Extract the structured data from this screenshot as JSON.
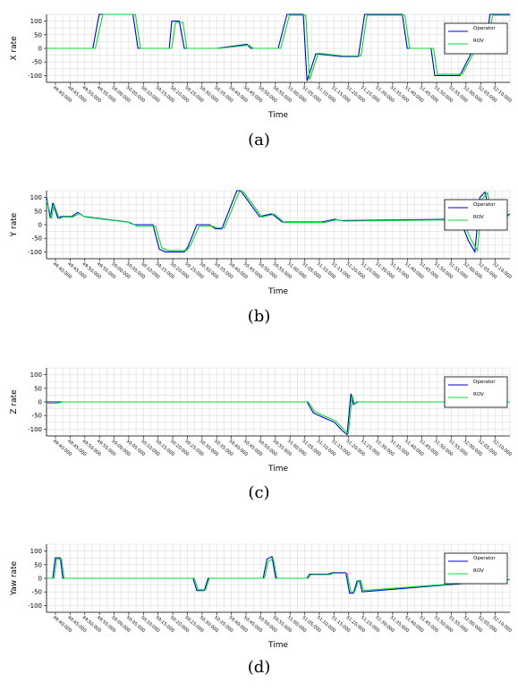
{
  "figure": {
    "captions": [
      "(a)",
      "(b)",
      "(c)",
      "(d)"
    ]
  },
  "colors": {
    "operator": "#0000cc",
    "rov": "#00dd33",
    "grid": "#d6d6d6"
  },
  "chart_data": [
    {
      "type": "line",
      "title": "",
      "xlabel": "Time",
      "ylabel": "X rate",
      "ylim": [
        -125,
        125
      ],
      "yticks": [
        100,
        50,
        0,
        -50,
        -100
      ],
      "xlim": [
        0,
        37
      ],
      "xtick_labels": [
        "49:40:000",
        "49:45:000",
        "49:50:000",
        "49:55:000",
        "50:00:000",
        "50:05:000",
        "50:10:000",
        "50:15:000",
        "50:20:000",
        "50:25:000",
        "50:30:000",
        "50:35:000",
        "50:40:000",
        "50:45:000",
        "50:50:000",
        "50:55:000",
        "51:00:000",
        "51:05:000",
        "51:10:000",
        "51:15:000",
        "51:20:000",
        "51:25:000",
        "51:30:000",
        "51:35:000",
        "51:40:000",
        "51:45:000",
        "51:50:000",
        "51:55:000",
        "52:00:000",
        "52:05:000",
        "52:10:000"
      ],
      "grid": true,
      "legend_position": "top-right",
      "series": [
        {
          "name": "Operator",
          "x": [
            0,
            3.7,
            4.2,
            6.9,
            7.3,
            9.8,
            10,
            10.6,
            11,
            13.6,
            16,
            16.3,
            18.5,
            19.2,
            20.5,
            20.8,
            21.5,
            23.5,
            24.9,
            25.4,
            28.4,
            28.8,
            30.7,
            31,
            33,
            34,
            34.2,
            35.1,
            35.4,
            37
          ],
          "y": [
            0,
            0,
            125,
            125,
            0,
            0,
            100,
            100,
            0,
            0,
            15,
            0,
            0,
            125,
            125,
            -120,
            -20,
            -30,
            -30,
            125,
            125,
            0,
            0,
            -100,
            -100,
            -10,
            -10,
            0,
            125,
            125
          ]
        },
        {
          "name": "ROV",
          "x": [
            0,
            3.9,
            4.5,
            7.1,
            7.5,
            10,
            10.3,
            10.9,
            11.2,
            13.8,
            16.2,
            16.5,
            18.7,
            19.4,
            20.7,
            21,
            21.7,
            23.7,
            25.1,
            25.6,
            28.6,
            29,
            30.9,
            31.2,
            33.2,
            34.2,
            34.4,
            35.3,
            35.6,
            37
          ],
          "y": [
            0,
            0,
            125,
            125,
            0,
            0,
            95,
            95,
            0,
            0,
            12,
            0,
            0,
            122,
            122,
            -115,
            -18,
            -28,
            -28,
            122,
            122,
            0,
            0,
            -95,
            -95,
            -8,
            -8,
            0,
            122,
            122
          ]
        }
      ]
    },
    {
      "type": "line",
      "title": "",
      "xlabel": "Time",
      "ylabel": "Y rate",
      "ylim": [
        -125,
        125
      ],
      "yticks": [
        100,
        50,
        0,
        -50,
        -100
      ],
      "xlim": [
        0,
        37
      ],
      "xtick_labels": [
        "49:40:000",
        "49:45:000",
        "49:50:000",
        "49:55:000",
        "50:00:000",
        "50:05:000",
        "50:10:000",
        "50:15:000",
        "50:20:000",
        "50:25:000",
        "50:30:000",
        "50:35:000",
        "50:40:000",
        "50:45:000",
        "50:50:000",
        "50:55:000",
        "51:00:000",
        "51:05:000",
        "51:10:000",
        "51:15:000",
        "51:20:000",
        "51:25:000",
        "51:30:000",
        "51:35:000",
        "51:40:000",
        "51:45:000",
        "51:50:000",
        "51:55:000",
        "52:00:000",
        "52:05:000",
        "52:10:000"
      ],
      "grid": true,
      "legend_position": "top-right",
      "series": [
        {
          "name": "Operator",
          "x": [
            0,
            0.3,
            0.5,
            0.9,
            1.2,
            2,
            2.5,
            3,
            6.5,
            7,
            8.5,
            9,
            9.5,
            11,
            11.3,
            12,
            13,
            13.5,
            14,
            15.2,
            15.5,
            17,
            18,
            18.8,
            20.5,
            21.5,
            22,
            23,
            23.5,
            33,
            33.7,
            34.2,
            34.6,
            35,
            35.6,
            37
          ],
          "y": [
            100,
            25,
            80,
            25,
            30,
            30,
            45,
            30,
            10,
            0,
            0,
            -90,
            -100,
            -100,
            -80,
            0,
            0,
            -15,
            -15,
            125,
            125,
            30,
            40,
            10,
            10,
            10,
            10,
            20,
            15,
            20,
            -60,
            -100,
            100,
            120,
            0,
            40
          ]
        },
        {
          "name": "ROV",
          "x": [
            0,
            0.4,
            0.6,
            1,
            1.3,
            2.1,
            2.6,
            3.1,
            6.7,
            7.2,
            8.7,
            9.2,
            9.7,
            11.2,
            11.5,
            12.2,
            13.2,
            13.7,
            14.2,
            15.4,
            15.7,
            17.2,
            18.2,
            19,
            20.7,
            21.7,
            22.2,
            23.2,
            23.7,
            33.2,
            33.9,
            34.4,
            34.8,
            35.2,
            35.8,
            37
          ],
          "y": [
            90,
            22,
            75,
            22,
            28,
            28,
            40,
            28,
            8,
            -5,
            -5,
            -85,
            -95,
            -95,
            -75,
            -5,
            -5,
            -12,
            -12,
            122,
            122,
            28,
            38,
            8,
            8,
            8,
            8,
            18,
            13,
            18,
            -55,
            -95,
            95,
            118,
            -5,
            38
          ]
        }
      ]
    },
    {
      "type": "line",
      "title": "",
      "xlabel": "Time",
      "ylabel": "Z rate",
      "ylim": [
        -125,
        125
      ],
      "yticks": [
        100,
        50,
        0,
        -50,
        -100
      ],
      "xlim": [
        0,
        37
      ],
      "xtick_labels": [
        "49:40:000",
        "49:45:000",
        "49:50:000",
        "49:55:000",
        "50:00:000",
        "50:05:000",
        "50:10:000",
        "50:15:000",
        "50:20:000",
        "50:25:000",
        "50:30:000",
        "50:35:000",
        "50:40:000",
        "50:45:000",
        "50:50:000",
        "50:55:000",
        "51:00:000",
        "51:05:000",
        "51:10:000",
        "51:15:000",
        "51:20:000",
        "51:25:000",
        "51:30:000",
        "51:35:000",
        "51:40:000",
        "51:45:000",
        "51:50:000",
        "51:55:000",
        "52:00:000",
        "52:05:000",
        "52:10:000"
      ],
      "grid": true,
      "legend_position": "top-right",
      "series": [
        {
          "name": "Operator",
          "x": [
            0,
            0.8,
            1.3,
            20.8,
            21.3,
            22,
            23,
            23.6,
            24,
            24.3,
            24.5,
            24.8,
            37
          ],
          "y": [
            0,
            0,
            0,
            0,
            -40,
            -55,
            -75,
            -105,
            -120,
            30,
            -10,
            0,
            0
          ]
        },
        {
          "name": "ROV",
          "x": [
            0,
            0.8,
            1.3,
            20.9,
            21.4,
            22.1,
            23.1,
            23.7,
            24.1,
            24.4,
            24.6,
            24.9,
            37
          ],
          "y": [
            -5,
            -5,
            0,
            0,
            -35,
            -50,
            -70,
            -100,
            -115,
            25,
            -8,
            0,
            0
          ]
        }
      ]
    },
    {
      "type": "line",
      "title": "",
      "xlabel": "Time",
      "ylabel": "Yaw rate",
      "ylim": [
        -125,
        125
      ],
      "yticks": [
        100,
        50,
        0,
        -50,
        -100
      ],
      "xlim": [
        0,
        37
      ],
      "xtick_labels": [
        "49:40:000",
        "49:45:000",
        "49:50:000",
        "49:55:000",
        "50:00:000",
        "50:05:000",
        "50:10:000",
        "50:15:000",
        "50:20:000",
        "50:25:000",
        "50:30:000",
        "50:35:000",
        "50:40:000",
        "50:45:000",
        "50:50:000",
        "50:55:000",
        "51:00:000",
        "51:05:000",
        "51:10:000",
        "51:15:000",
        "51:20:000",
        "51:25:000",
        "51:30:000",
        "51:35:000",
        "51:40:000",
        "51:45:000",
        "51:50:000",
        "51:55:000",
        "52:00:000",
        "52:05:000",
        "52:10:000"
      ],
      "grid": true,
      "legend_position": "top-right",
      "series": [
        {
          "name": "Operator",
          "x": [
            0,
            0.5,
            0.7,
            1.1,
            1.3,
            11.7,
            12,
            12.6,
            12.9,
            17.3,
            17.6,
            18,
            18.3,
            20.8,
            21,
            22.5,
            22.8,
            23.9,
            24.2,
            24.5,
            24.8,
            25,
            25.2,
            37
          ],
          "y": [
            0,
            0,
            75,
            75,
            0,
            0,
            -45,
            -45,
            0,
            0,
            70,
            80,
            0,
            0,
            15,
            15,
            20,
            20,
            -55,
            -55,
            -10,
            -10,
            -50,
            -5
          ]
        },
        {
          "name": "ROV",
          "x": [
            0,
            0.6,
            0.8,
            1.2,
            1.4,
            11.8,
            12.1,
            12.7,
            13,
            17.4,
            17.7,
            18.1,
            18.4,
            20.9,
            21.1,
            22.6,
            22.9,
            24,
            24.3,
            24.6,
            24.9,
            25.1,
            25.3,
            37
          ],
          "y": [
            0,
            0,
            70,
            70,
            0,
            0,
            -42,
            -42,
            0,
            0,
            62,
            72,
            0,
            0,
            13,
            13,
            18,
            18,
            -50,
            -50,
            -8,
            -8,
            -45,
            -5
          ]
        }
      ]
    }
  ]
}
